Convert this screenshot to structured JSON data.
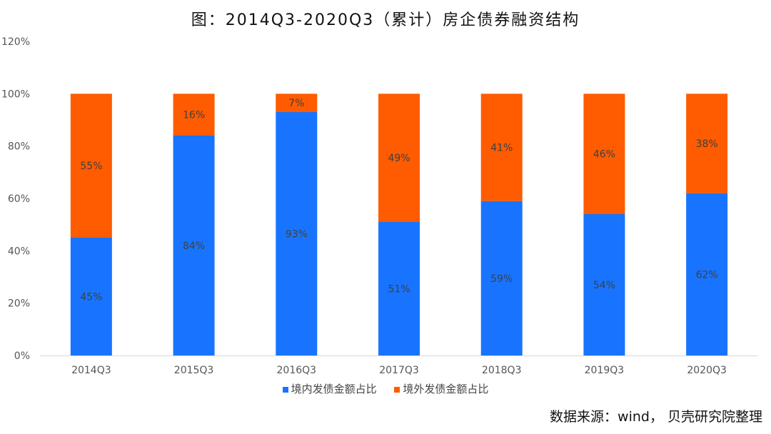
{
  "title": "图：2014Q3-2020Q3（累计）房企债券融资结构",
  "source": "数据来源：wind， 贝壳研究院整理",
  "colors": {
    "domestic": "#1874FF",
    "overseas": "#FF5B00",
    "axis": "#D9D9D9"
  },
  "chart_data": {
    "type": "bar",
    "stacked": true,
    "categories": [
      "2014Q3",
      "2015Q3",
      "2016Q3",
      "2017Q3",
      "2018Q3",
      "2019Q3",
      "2020Q3"
    ],
    "series": [
      {
        "name": "境内发债金额占比",
        "values": [
          45,
          84,
          93,
          51,
          59,
          54,
          62
        ]
      },
      {
        "name": "境外发债金额占比",
        "values": [
          55,
          16,
          7,
          49,
          41,
          46,
          38
        ]
      }
    ],
    "ylim": [
      0,
      120
    ],
    "yticks": [
      "0%",
      "20%",
      "40%",
      "60%",
      "80%",
      "100%",
      "120%"
    ],
    "grid": false,
    "legend_position": "bottom"
  }
}
